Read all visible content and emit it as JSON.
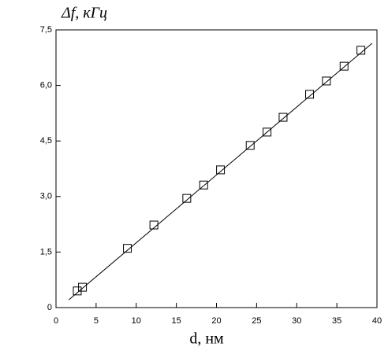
{
  "chart_data": {
    "type": "scatter",
    "y_label": "Δf, кГц",
    "x_label": "d, нм",
    "series": [
      {
        "color": "#000000",
        "marker": "square",
        "x": [
          2.65,
          3.3,
          8.9,
          12.2,
          16.3,
          18.4,
          20.5,
          24.2,
          26.3,
          28.3,
          31.6,
          33.7,
          35.9,
          38.0
        ],
        "values": [
          0.45,
          0.55,
          1.6,
          2.23,
          2.95,
          3.31,
          3.72,
          4.38,
          4.74,
          5.14,
          5.76,
          6.12,
          6.52,
          6.95
        ]
      },
      {
        "color": "#000000",
        "marker": "line",
        "x": [
          1.6,
          39.4
        ],
        "values": [
          0.21,
          7.14
        ]
      }
    ],
    "xlim": [
      0,
      40
    ],
    "xticks": [
      0,
      5,
      10,
      15,
      20,
      25,
      30,
      35,
      40
    ],
    "ylim": [
      0,
      7.5
    ],
    "yticks": [
      0,
      {
        "value": 1.5,
        "label": "1,5"
      },
      {
        "value": 3,
        "label": "3,0"
      },
      {
        "value": 4.5,
        "label": "4,5"
      },
      {
        "value": 6,
        "label": "6,0"
      },
      {
        "value": 7.5,
        "label": "7,5"
      }
    ],
    "grid": false
  }
}
